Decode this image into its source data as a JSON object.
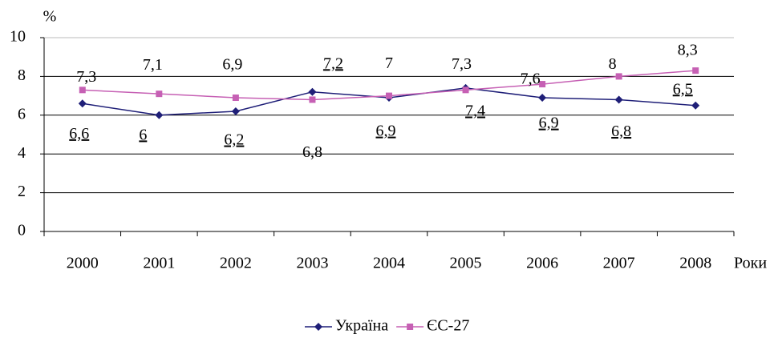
{
  "chart_data": {
    "type": "line",
    "y_unit": "%",
    "x_label": "Роки",
    "categories": [
      "2000",
      "2001",
      "2002",
      "2003",
      "2004",
      "2005",
      "2006",
      "2007",
      "2008"
    ],
    "series": [
      {
        "name": "Україна",
        "color": "#1f1f78",
        "marker": "diamond",
        "values": [
          6.6,
          6.0,
          6.2,
          7.2,
          6.9,
          7.4,
          6.9,
          6.8,
          6.5
        ],
        "value_labels": [
          "6,6",
          "6",
          "6,2",
          "7,2",
          "6,9",
          "7,4",
          "6,9",
          "6,8",
          "6,5"
        ]
      },
      {
        "name": "ЄС-27",
        "color": "#c660b4",
        "marker": "square",
        "values": [
          7.3,
          7.1,
          6.9,
          6.8,
          7,
          7.3,
          7.6,
          8,
          8.3
        ],
        "value_labels": [
          "7,3",
          "7,1",
          "6,9",
          "6,8",
          "7",
          "7,3",
          "7,6",
          "8",
          "8,3"
        ]
      }
    ],
    "ylim": [
      0,
      10
    ],
    "yticks": [
      0,
      2,
      4,
      6,
      8,
      10
    ],
    "grid": true,
    "legend": "bottom"
  }
}
